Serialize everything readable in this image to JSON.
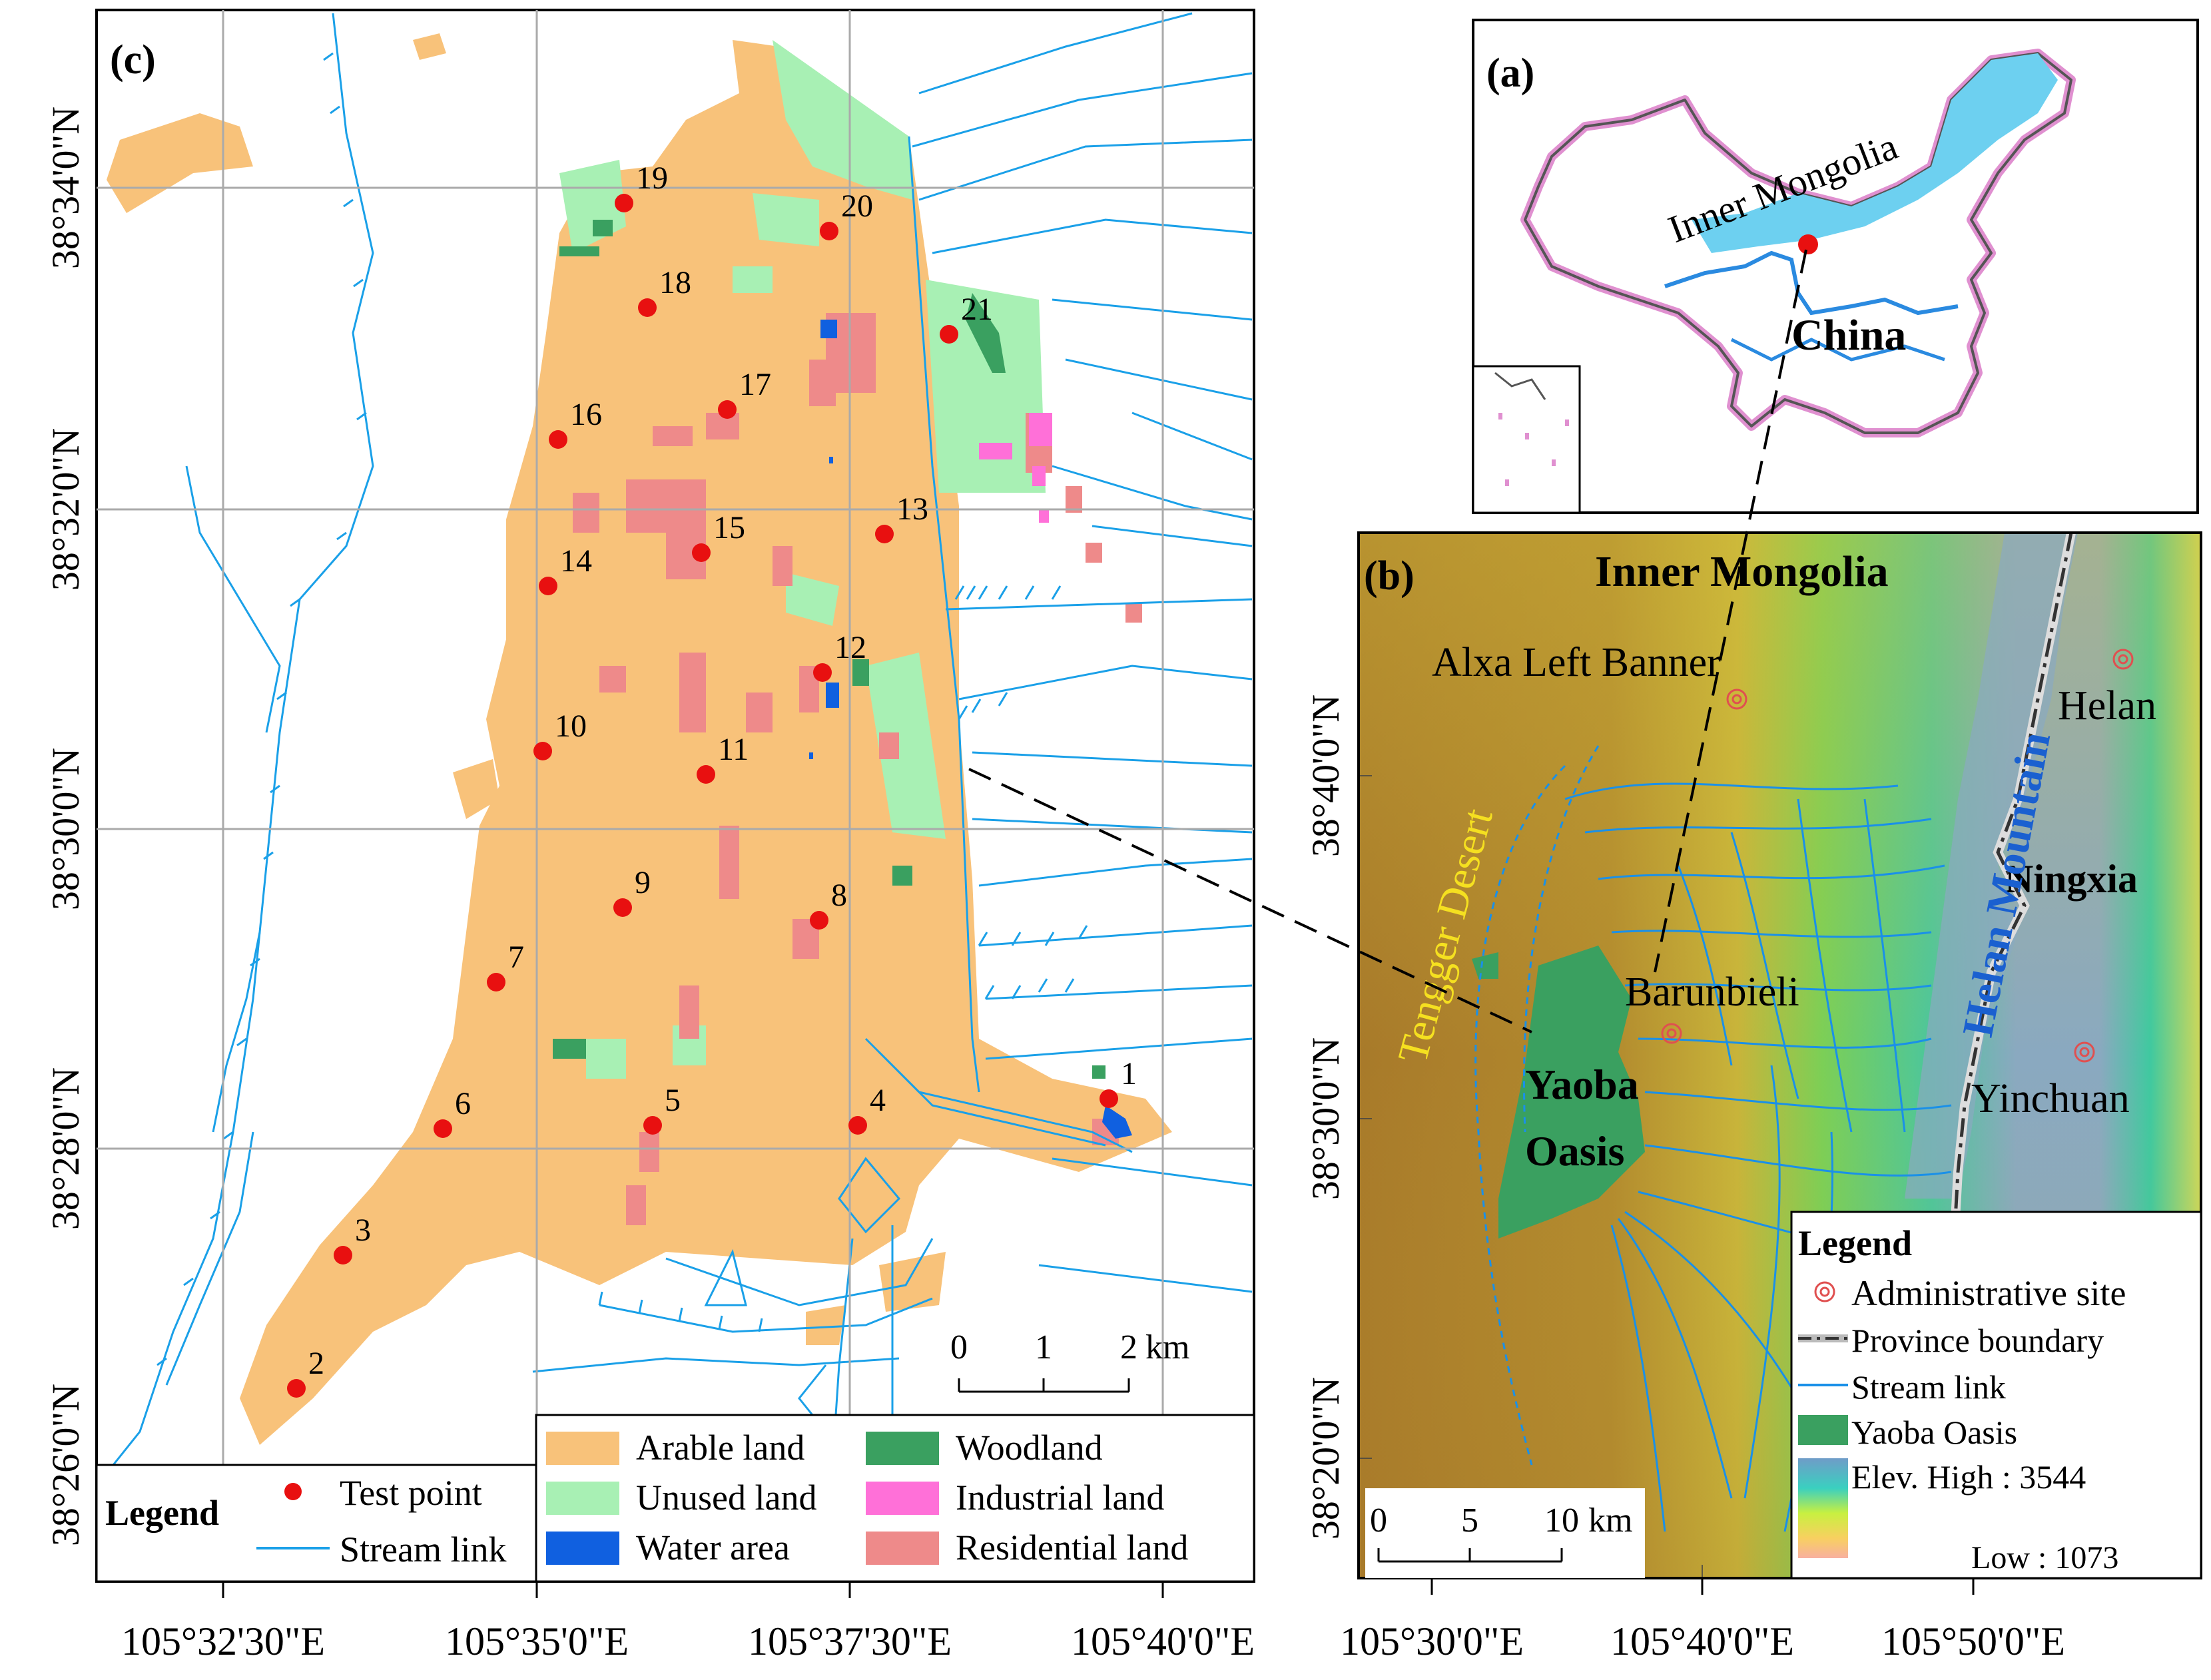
{
  "panel_c": {
    "label": "(c)",
    "lat_labels": [
      "38°34'0\"N",
      "38°32'0\"N",
      "38°30'0\"N",
      "38°28'0\"N",
      "38°26'0\"N"
    ],
    "lon_labels": [
      "105°32'30\"E",
      "105°35'0\"E",
      "105°37'30\"E",
      "105°40'0\"E"
    ],
    "points": [
      "1",
      "2",
      "3",
      "4",
      "5",
      "6",
      "7",
      "8",
      "9",
      "10",
      "11",
      "12",
      "13",
      "14",
      "15",
      "16",
      "17",
      "18",
      "19",
      "20",
      "21"
    ],
    "scale": {
      "t0": "0",
      "t1": "1",
      "t2": "2",
      "unit": "km"
    },
    "legend": {
      "title": "Legend",
      "test_point": "Test point",
      "stream_link": "Stream link",
      "arable": "Arable land",
      "unused": "Unused land",
      "water": "Water area",
      "woodland": "Woodland",
      "industrial": "Industrial land",
      "residential": "Residential land"
    }
  },
  "panel_a": {
    "label": "(a)",
    "region": "Inner Mongolia",
    "country": "China"
  },
  "panel_b": {
    "label": "(b)",
    "places": {
      "inner_mongolia": "Inner Mongolia",
      "alxa": "Alxa Left Banner",
      "helan": "Helan",
      "helan_mountain": "Helan Mountain",
      "ningxia": "Ningxia",
      "tengger": "Tengger Desert",
      "barunbieli": "Barunbieli",
      "yaoba1": "Yaoba",
      "yaoba2": "Oasis",
      "yinchuan": "Yinchuan"
    },
    "lat_labels": [
      "38°40'0\"N",
      "38°30'0\"N",
      "38°20'0\"N"
    ],
    "lon_labels": [
      "105°30'0\"E",
      "105°40'0\"E",
      "105°50'0\"E"
    ],
    "scale": {
      "t0": "0",
      "t1": "5",
      "t2": "10",
      "unit": "km"
    },
    "legend": {
      "title": "Legend",
      "admin": "Administrative site",
      "province": "Province boundary",
      "stream": "Stream link",
      "oasis": "Yaoba Oasis",
      "elev_high": "Elev. High : 3544",
      "elev_low": "Low : 1073"
    }
  },
  "colors": {
    "arable": "#f8c27a",
    "unused": "#a8f0b4",
    "water": "#1060e0",
    "woodland": "#3aa060",
    "industrial": "#ff70d8",
    "residential": "#ee8a8a",
    "stream": "#1aa0e8",
    "test_point": "#e81010"
  }
}
